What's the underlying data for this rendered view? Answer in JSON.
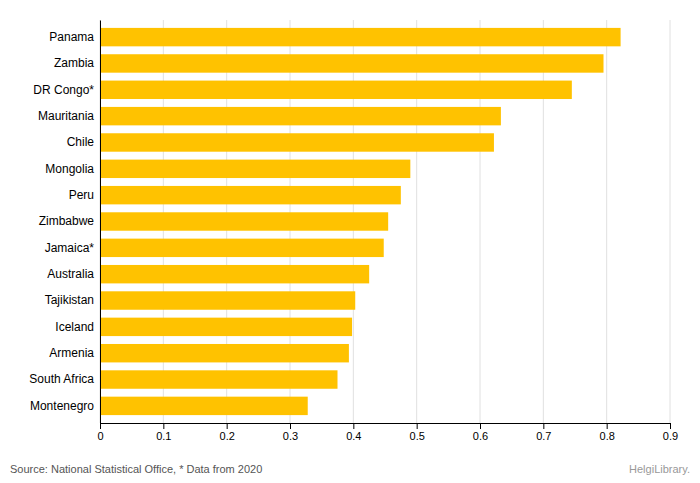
{
  "chart_data": {
    "type": "bar",
    "orientation": "horizontal",
    "categories": [
      "Panama",
      "Zambia",
      "DR Congo*",
      "Mauritania",
      "Chile",
      "Mongolia",
      "Peru",
      "Zimbabwe",
      "Jamaica*",
      "Australia",
      "Tajikistan",
      "Iceland",
      "Armenia",
      "South Africa",
      "Montenegro"
    ],
    "values": [
      0.822,
      0.795,
      0.745,
      0.633,
      0.622,
      0.49,
      0.475,
      0.455,
      0.448,
      0.425,
      0.403,
      0.398,
      0.393,
      0.375,
      0.328
    ],
    "color": "#FFC200",
    "xlim": [
      0,
      0.9
    ],
    "xticks": [
      0,
      0.1,
      0.2,
      0.3,
      0.4,
      0.5,
      0.6,
      0.7,
      0.8,
      0.9
    ],
    "grid": true,
    "annotations": [
      "Source: National Statistical Office, * Data from 2020",
      "HelgiLibrary."
    ]
  }
}
